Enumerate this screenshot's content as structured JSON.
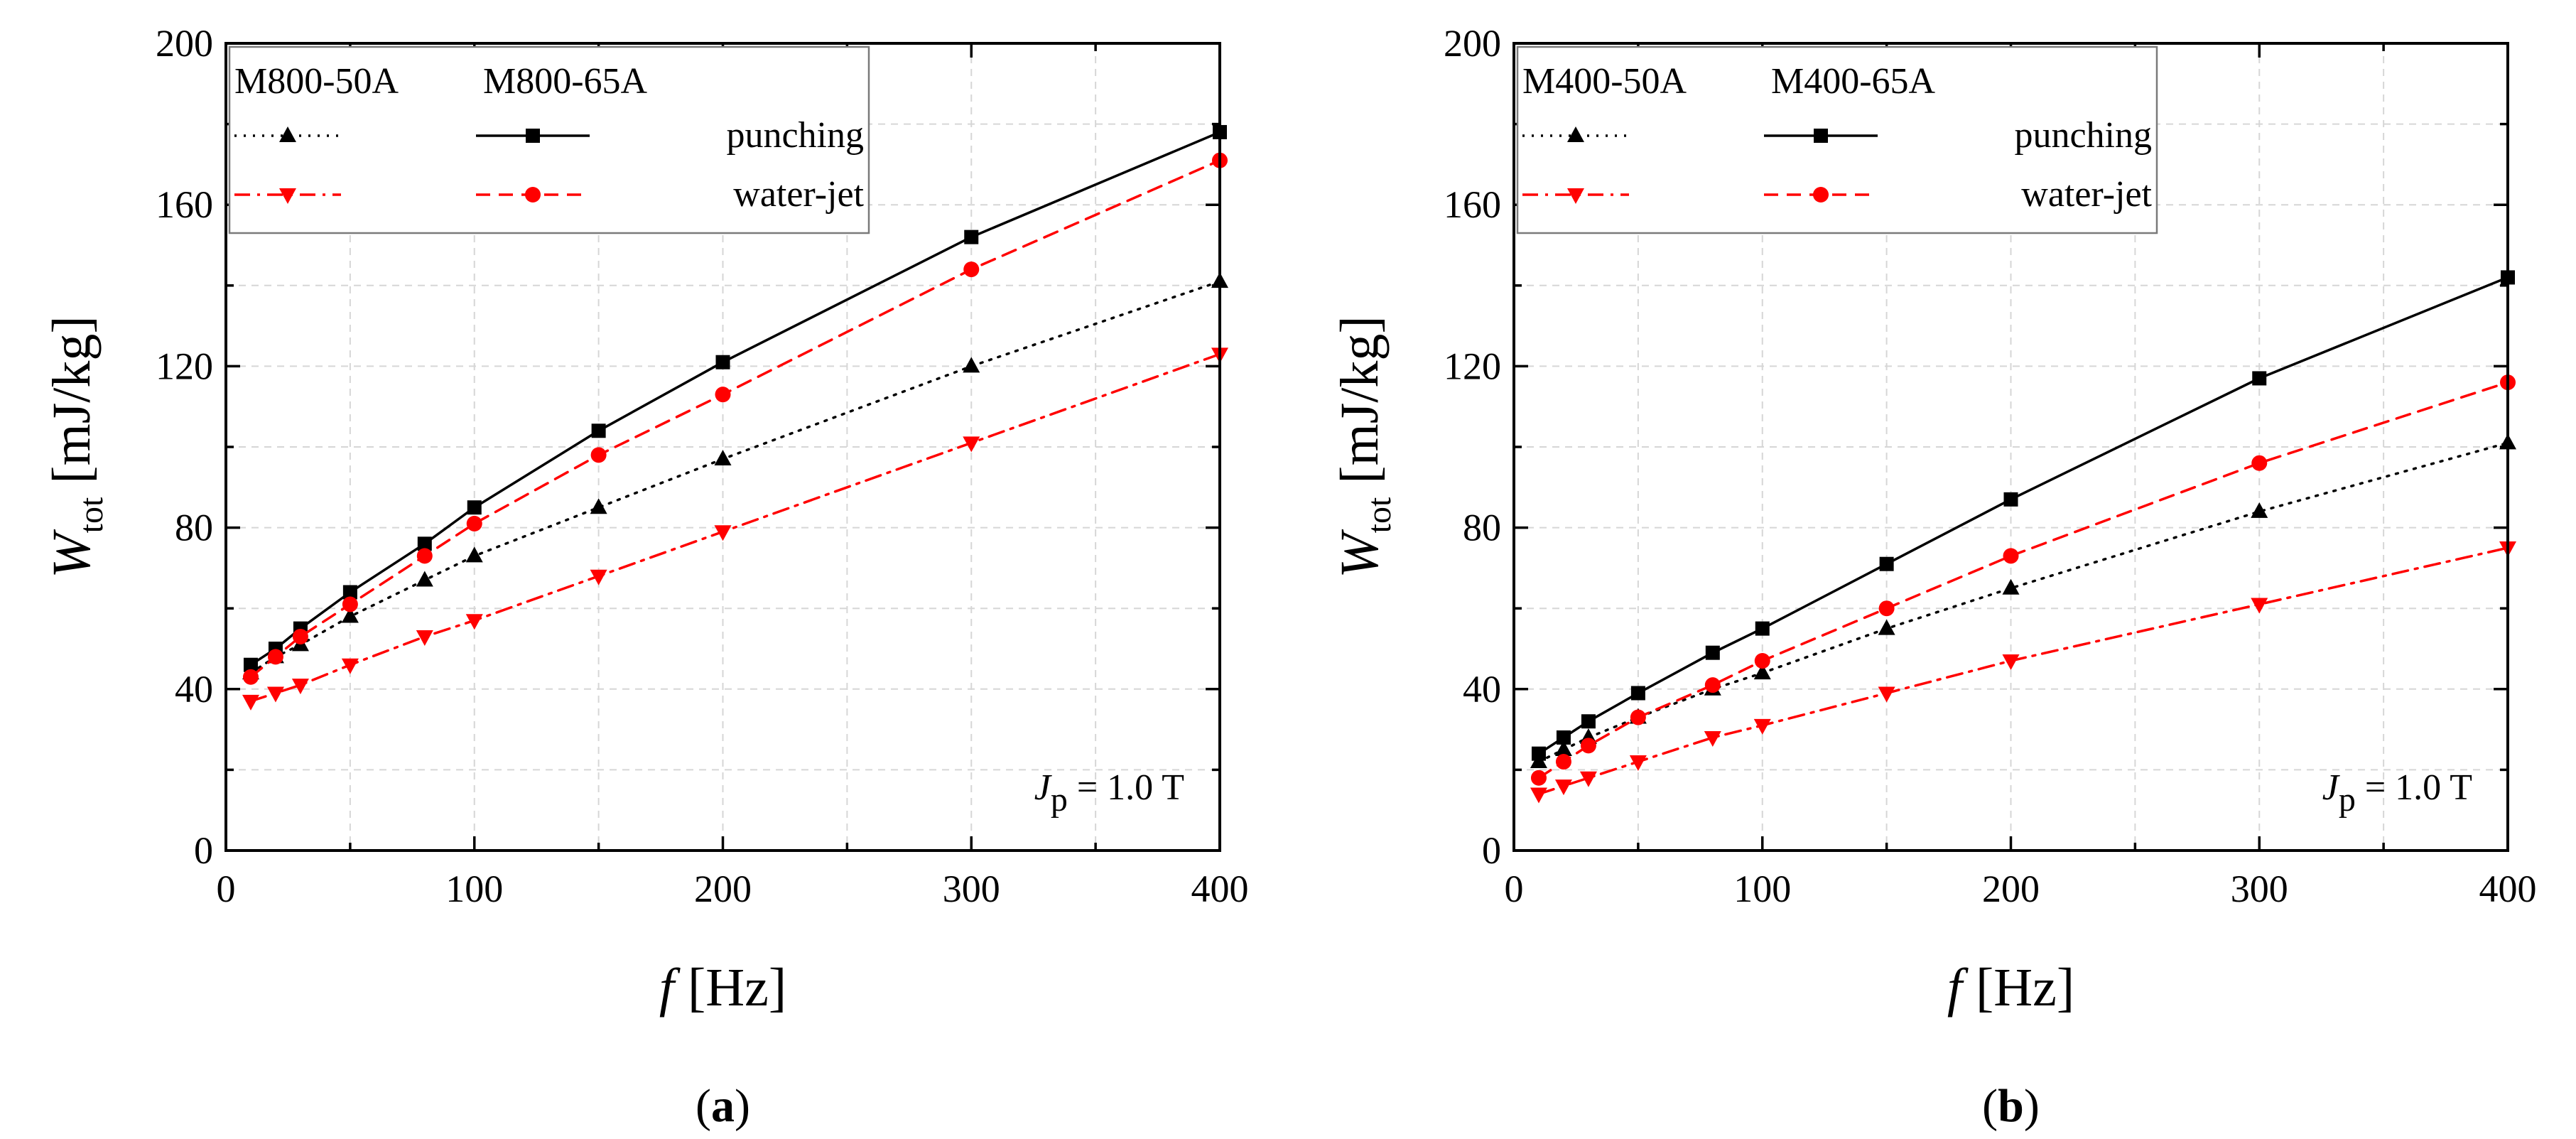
{
  "chart_data": [
    {
      "type": "line",
      "panel_label": "a",
      "xlabel": "f [Hz]",
      "xlabel_var": "f",
      "xlabel_unit": " [Hz]",
      "ylabel": "W_tot [mJ/kg]",
      "ylabel_var": "W",
      "ylabel_sub": "tot",
      "ylabel_unit": " [mJ/kg]",
      "xlim": [
        0,
        400
      ],
      "ylim": [
        0,
        200
      ],
      "xticks": [
        0,
        100,
        200,
        300,
        400
      ],
      "yticks": [
        0,
        40,
        80,
        120,
        160,
        200
      ],
      "grid": true,
      "annotation": {
        "var": "J",
        "sub": "p",
        "text": " = 1.0 T"
      },
      "legend": {
        "placement": "top-left",
        "col1_header": "M800-50A",
        "col2_header": "M800-65A",
        "rows": [
          "punching",
          "water-jet"
        ]
      },
      "series": [
        {
          "name": "M800-50A punching",
          "material": "M800-50A",
          "cut": "punching",
          "color": "#000000",
          "marker": "triangle-up",
          "linestyle": "dotted",
          "x": [
            10,
            20,
            30,
            50,
            80,
            100,
            150,
            200,
            300,
            400
          ],
          "values": [
            44,
            48,
            51,
            58,
            67,
            73,
            85,
            97,
            120,
            141
          ]
        },
        {
          "name": "M800-65A punching",
          "material": "M800-65A",
          "cut": "punching",
          "color": "#000000",
          "marker": "square",
          "linestyle": "solid",
          "x": [
            10,
            20,
            30,
            50,
            80,
            100,
            150,
            200,
            300,
            400
          ],
          "values": [
            46,
            50,
            55,
            64,
            76,
            85,
            104,
            121,
            152,
            178
          ]
        },
        {
          "name": "M800-50A water-jet",
          "material": "M800-50A",
          "cut": "water-jet",
          "color": "#ff0000",
          "marker": "triangle-down",
          "linestyle": "dashdot",
          "x": [
            10,
            20,
            30,
            50,
            80,
            100,
            150,
            200,
            300,
            400
          ],
          "values": [
            37,
            39,
            41,
            46,
            53,
            57,
            68,
            79,
            101,
            123
          ]
        },
        {
          "name": "M800-65A water-jet",
          "material": "M800-65A",
          "cut": "water-jet",
          "color": "#ff0000",
          "marker": "circle",
          "linestyle": "dashed",
          "x": [
            10,
            20,
            30,
            50,
            80,
            100,
            150,
            200,
            300,
            400
          ],
          "values": [
            43,
            48,
            53,
            61,
            73,
            81,
            98,
            113,
            144,
            171
          ]
        }
      ]
    },
    {
      "type": "line",
      "panel_label": "b",
      "xlabel": "f [Hz]",
      "xlabel_var": "f",
      "xlabel_unit": " [Hz]",
      "ylabel": "W_tot [mJ/kg]",
      "ylabel_var": "W",
      "ylabel_sub": "tot",
      "ylabel_unit": " [mJ/kg]",
      "xlim": [
        0,
        400
      ],
      "ylim": [
        0,
        200
      ],
      "xticks": [
        0,
        100,
        200,
        300,
        400
      ],
      "yticks": [
        0,
        40,
        80,
        120,
        160,
        200
      ],
      "grid": true,
      "annotation": {
        "var": "J",
        "sub": "p",
        "text": " = 1.0 T"
      },
      "legend": {
        "placement": "top-left",
        "col1_header": "M400-50A",
        "col2_header": "M400-65A",
        "rows": [
          "punching",
          "water-jet"
        ]
      },
      "series": [
        {
          "name": "M400-50A punching",
          "material": "M400-50A",
          "cut": "punching",
          "color": "#000000",
          "marker": "triangle-up",
          "linestyle": "dotted",
          "x": [
            10,
            20,
            30,
            50,
            80,
            100,
            150,
            200,
            300,
            400
          ],
          "values": [
            22,
            25,
            28,
            33,
            40,
            44,
            55,
            65,
            84,
            101
          ]
        },
        {
          "name": "M400-65A punching",
          "material": "M400-65A",
          "cut": "punching",
          "color": "#000000",
          "marker": "square",
          "linestyle": "solid",
          "x": [
            10,
            20,
            30,
            50,
            80,
            100,
            150,
            200,
            300,
            400
          ],
          "values": [
            24,
            28,
            32,
            39,
            49,
            55,
            71,
            87,
            117,
            142
          ]
        },
        {
          "name": "M400-50A water-jet",
          "material": "M400-50A",
          "cut": "water-jet",
          "color": "#ff0000",
          "marker": "triangle-down",
          "linestyle": "dashdot",
          "x": [
            10,
            20,
            30,
            50,
            80,
            100,
            150,
            200,
            300,
            400
          ],
          "values": [
            14,
            16,
            18,
            22,
            28,
            31,
            39,
            47,
            61,
            75
          ]
        },
        {
          "name": "M400-65A water-jet",
          "material": "M400-65A",
          "cut": "water-jet",
          "color": "#ff0000",
          "marker": "circle",
          "linestyle": "dashed",
          "x": [
            10,
            20,
            30,
            50,
            80,
            100,
            150,
            200,
            300,
            400
          ],
          "values": [
            18,
            22,
            26,
            33,
            41,
            47,
            60,
            73,
            96,
            116
          ]
        }
      ]
    }
  ]
}
